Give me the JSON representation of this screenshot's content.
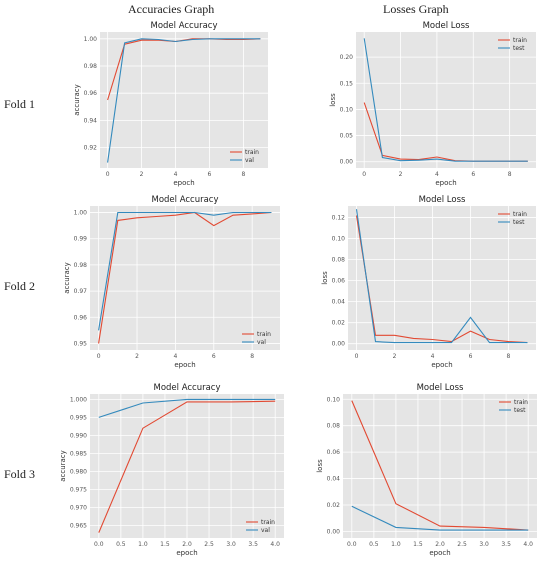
{
  "headers": {
    "left": "Accuracies Graph",
    "right": "Losses Graph"
  },
  "folds": [
    "Fold 1",
    "Fold 2",
    "Fold 3"
  ],
  "colors": {
    "train": "#e24a33",
    "val": "#348abd"
  },
  "chart_data": [
    {
      "id": "f1-acc",
      "type": "line",
      "title": "Model Accuracy",
      "xlabel": "epoch",
      "ylabel": "accuracy",
      "xlim": [
        -0.45,
        9.45
      ],
      "ylim": [
        0.905,
        1.005
      ],
      "xticks": [
        0,
        2,
        4,
        6,
        8
      ],
      "yticks": [
        0.92,
        0.94,
        0.96,
        0.98,
        1.0
      ],
      "yticklabels": [
        "0.92",
        "0.94",
        "0.96",
        "0.98",
        "1.00"
      ],
      "legend": "lower-right",
      "series": [
        {
          "name": "train",
          "color": "#e24a33",
          "x": [
            0,
            1,
            2,
            3,
            4,
            5,
            6,
            7,
            8,
            9
          ],
          "y": [
            0.955,
            0.996,
            0.999,
            0.999,
            0.998,
            1.0,
            1.0,
            0.9995,
            0.9995,
            1.0
          ]
        },
        {
          "name": "val",
          "color": "#348abd",
          "x": [
            0,
            1,
            2,
            3,
            4,
            5,
            6,
            7,
            8,
            9
          ],
          "y": [
            0.909,
            0.997,
            1.0,
            0.9995,
            0.998,
            0.9995,
            1.0,
            1.0,
            1.0,
            1.0
          ]
        }
      ]
    },
    {
      "id": "f1-loss",
      "type": "line",
      "title": "Model Loss",
      "xlabel": "epoch",
      "ylabel": "loss",
      "xlim": [
        -0.45,
        9.45
      ],
      "ylim": [
        -0.012,
        0.248
      ],
      "xticks": [
        0,
        2,
        4,
        6,
        8
      ],
      "yticks": [
        0.0,
        0.05,
        0.1,
        0.15,
        0.2
      ],
      "yticklabels": [
        "0.00",
        "0.05",
        "0.10",
        "0.15",
        "0.20"
      ],
      "legend": "top-right",
      "series": [
        {
          "name": "train",
          "color": "#e24a33",
          "x": [
            0,
            1,
            2,
            3,
            4,
            5,
            6,
            7,
            8,
            9
          ],
          "y": [
            0.113,
            0.012,
            0.005,
            0.004,
            0.009,
            0.002,
            0.001,
            0.001,
            0.001,
            0.001
          ]
        },
        {
          "name": "test",
          "color": "#348abd",
          "x": [
            0,
            1,
            2,
            3,
            4,
            5,
            6,
            7,
            8,
            9
          ],
          "y": [
            0.236,
            0.008,
            0.002,
            0.003,
            0.005,
            0.001,
            0.001,
            0.001,
            0.001,
            0.001
          ]
        }
      ]
    },
    {
      "id": "f2-acc",
      "type": "line",
      "title": "Model Accuracy",
      "xlabel": "epoch",
      "ylabel": "accuracy",
      "xlim": [
        -0.45,
        9.45
      ],
      "ylim": [
        0.9475,
        1.0025
      ],
      "xticks": [
        0,
        2,
        4,
        6,
        8
      ],
      "yticks": [
        0.95,
        0.96,
        0.97,
        0.98,
        0.99,
        1.0
      ],
      "yticklabels": [
        "0.95",
        "0.96",
        "0.97",
        "0.98",
        "0.99",
        "1.00"
      ],
      "legend": "lower-right",
      "series": [
        {
          "name": "train",
          "color": "#e24a33",
          "x": [
            0,
            1,
            2,
            3,
            4,
            5,
            6,
            7,
            8,
            9
          ],
          "y": [
            0.95,
            0.997,
            0.998,
            0.9985,
            0.999,
            1.0,
            0.995,
            0.999,
            0.9995,
            1.0
          ]
        },
        {
          "name": "val",
          "color": "#348abd",
          "x": [
            0,
            1,
            2,
            3,
            4,
            5,
            6,
            7,
            8,
            9
          ],
          "y": [
            0.955,
            1.0,
            1.0,
            1.0,
            1.0,
            1.0,
            0.999,
            1.0,
            1.0,
            1.0
          ]
        }
      ]
    },
    {
      "id": "f2-loss",
      "type": "line",
      "title": "Model Loss",
      "xlabel": "epoch",
      "ylabel": "loss",
      "xlim": [
        -0.45,
        9.45
      ],
      "ylim": [
        -0.006,
        0.131
      ],
      "xticks": [
        0,
        2,
        4,
        6,
        8
      ],
      "yticks": [
        0.0,
        0.02,
        0.04,
        0.06,
        0.08,
        0.1,
        0.12
      ],
      "yticklabels": [
        "0.00",
        "0.02",
        "0.04",
        "0.06",
        "0.08",
        "0.10",
        "0.12"
      ],
      "legend": "top-right",
      "series": [
        {
          "name": "train",
          "color": "#e24a33",
          "x": [
            0,
            1,
            2,
            3,
            4,
            5,
            6,
            7,
            8,
            9
          ],
          "y": [
            0.122,
            0.008,
            0.008,
            0.005,
            0.004,
            0.002,
            0.012,
            0.004,
            0.002,
            0.001
          ]
        },
        {
          "name": "test",
          "color": "#348abd",
          "x": [
            0,
            1,
            2,
            3,
            4,
            5,
            6,
            7,
            8,
            9
          ],
          "y": [
            0.128,
            0.002,
            0.001,
            0.001,
            0.001,
            0.001,
            0.025,
            0.001,
            0.001,
            0.001
          ]
        }
      ]
    },
    {
      "id": "f3-acc",
      "type": "line",
      "title": "Model Accuracy",
      "xlabel": "epoch",
      "ylabel": "accuracy",
      "xlim": [
        -0.2,
        4.2
      ],
      "ylim": [
        0.9615,
        1.0015
      ],
      "xticks": [
        0,
        0.5,
        1.0,
        1.5,
        2.0,
        2.5,
        3.0,
        3.5,
        4.0
      ],
      "xticklabels": [
        "0.0",
        "0.5",
        "1.0",
        "1.5",
        "2.0",
        "2.5",
        "3.0",
        "3.5",
        "4.0"
      ],
      "yticks": [
        0.965,
        0.97,
        0.975,
        0.98,
        0.985,
        0.99,
        0.995,
        1.0
      ],
      "yticklabels": [
        "0.965",
        "0.970",
        "0.975",
        "0.980",
        "0.985",
        "0.990",
        "0.995",
        "1.000"
      ],
      "legend": "lower-right",
      "series": [
        {
          "name": "train",
          "color": "#e24a33",
          "x": [
            0,
            1,
            2,
            3,
            4
          ],
          "y": [
            0.963,
            0.992,
            0.9993,
            0.9993,
            0.9995
          ]
        },
        {
          "name": "val",
          "color": "#348abd",
          "x": [
            0,
            1,
            2,
            3,
            4
          ],
          "y": [
            0.995,
            0.999,
            1.0,
            1.0,
            1.0
          ]
        }
      ]
    },
    {
      "id": "f3-loss",
      "type": "line",
      "title": "Model Loss",
      "xlabel": "epoch",
      "ylabel": "loss",
      "xlim": [
        -0.2,
        4.2
      ],
      "ylim": [
        -0.005,
        0.104
      ],
      "xticks": [
        0,
        0.5,
        1.0,
        1.5,
        2.0,
        2.5,
        3.0,
        3.5,
        4.0
      ],
      "xticklabels": [
        "0.0",
        "0.5",
        "1.0",
        "1.5",
        "2.0",
        "2.5",
        "3.0",
        "3.5",
        "4.0"
      ],
      "yticks": [
        0.0,
        0.02,
        0.04,
        0.06,
        0.08,
        0.1
      ],
      "yticklabels": [
        "0.00",
        "0.02",
        "0.04",
        "0.06",
        "0.08",
        "0.10"
      ],
      "legend": "top-right",
      "series": [
        {
          "name": "train",
          "color": "#e24a33",
          "x": [
            0,
            1,
            2,
            3,
            4
          ],
          "y": [
            0.099,
            0.021,
            0.004,
            0.003,
            0.001
          ]
        },
        {
          "name": "test",
          "color": "#348abd",
          "x": [
            0,
            1,
            2,
            3,
            4
          ],
          "y": [
            0.019,
            0.003,
            0.001,
            0.001,
            0.001
          ]
        }
      ]
    }
  ]
}
